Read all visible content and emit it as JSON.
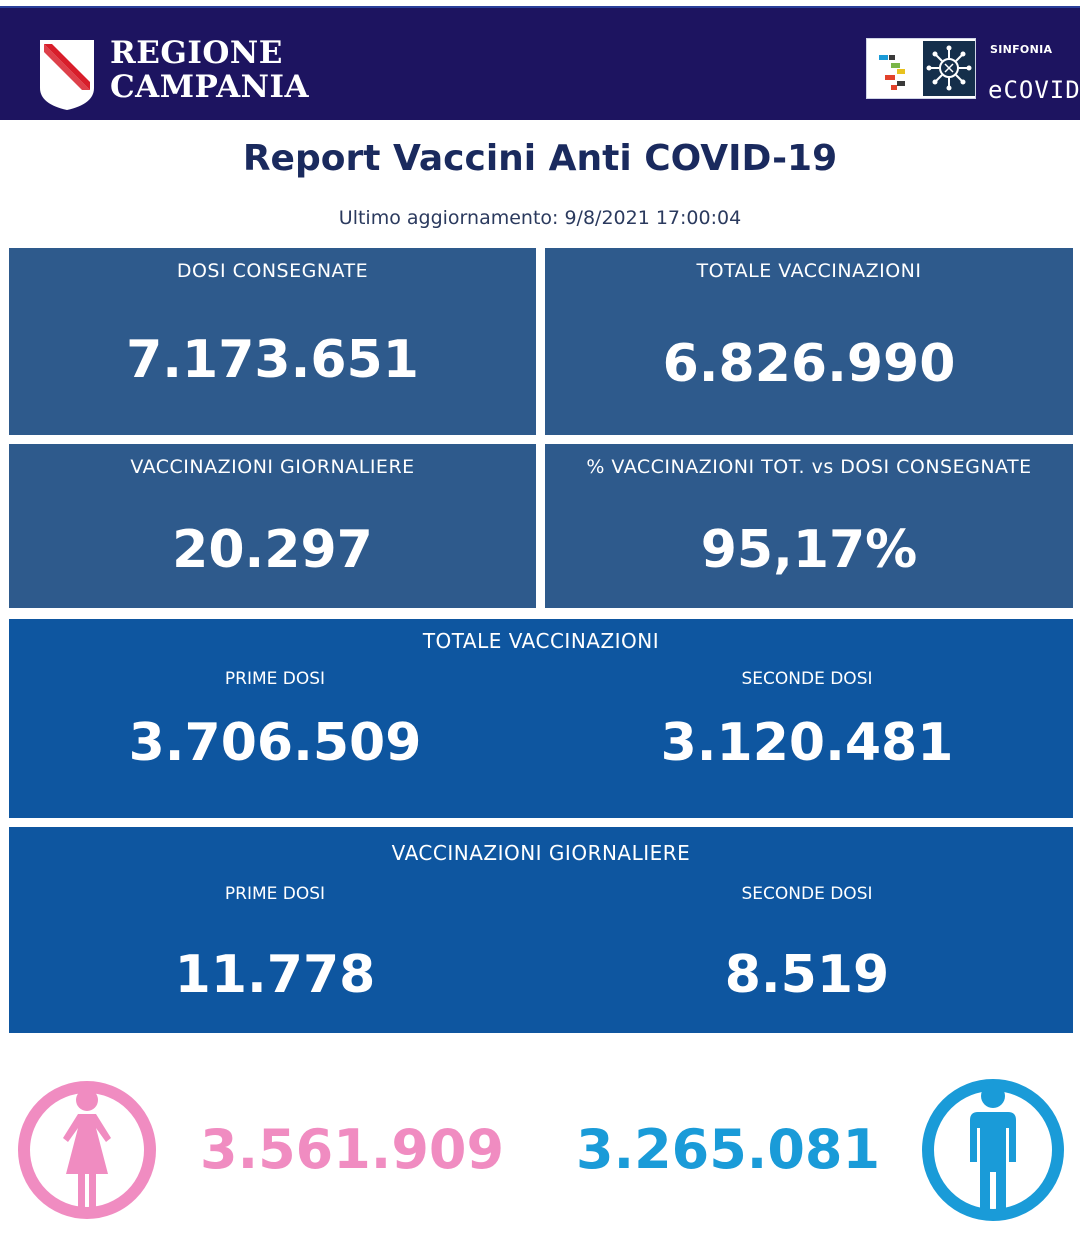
{
  "header": {
    "region_line1": "REGIONE",
    "region_line2": "CAMPANIA",
    "partner_small": "SINFONIA",
    "partner_name": "eCOVID"
  },
  "report": {
    "title": "Report Vaccini Anti COVID-19",
    "updated": "Ultimo aggiornamento: 9/8/2021  17:00:04"
  },
  "cards": {
    "dosi_consegnate": {
      "label": "DOSI  CONSEGNATE",
      "value": "7.173.651"
    },
    "totale_vaccinazioni": {
      "label": "TOTALE VACCINAZIONI",
      "value": "6.826.990"
    },
    "vaccinazioni_giornaliere": {
      "label": "VACCINAZIONI GIORNALIERE",
      "value": "20.297"
    },
    "percentuale": {
      "label": "% VACCINAZIONI TOT. vs DOSI CONSEGNATE",
      "value": "95,17%"
    }
  },
  "totale_breakdown": {
    "header": "TOTALE VACCINAZIONI",
    "prime_label": "PRIME DOSI",
    "prime_value": "3.706.509",
    "seconde_label": "SECONDE DOSI",
    "seconde_value": "3.120.481"
  },
  "giornaliere_breakdown": {
    "header": "VACCINAZIONI GIORNALIERE",
    "prime_label": "PRIME DOSI",
    "prime_value": "11.778",
    "seconde_label": "SECONDE DOSI",
    "seconde_value": "8.519"
  },
  "gender": {
    "female_value": "3.561.909",
    "male_value": "3.265.081",
    "female_color": "#f08cc1",
    "male_color": "#1a9bd8"
  },
  "colors": {
    "header_bg": "#1d1460",
    "card_bg": "#2e5a8c",
    "card_blue_bg": "#0e56a0",
    "title": "#1a2a5e"
  },
  "icons": [
    "regione-campania-shield-icon",
    "sinfonia-logo-icon",
    "virus-icon",
    "female-icon",
    "male-icon"
  ]
}
